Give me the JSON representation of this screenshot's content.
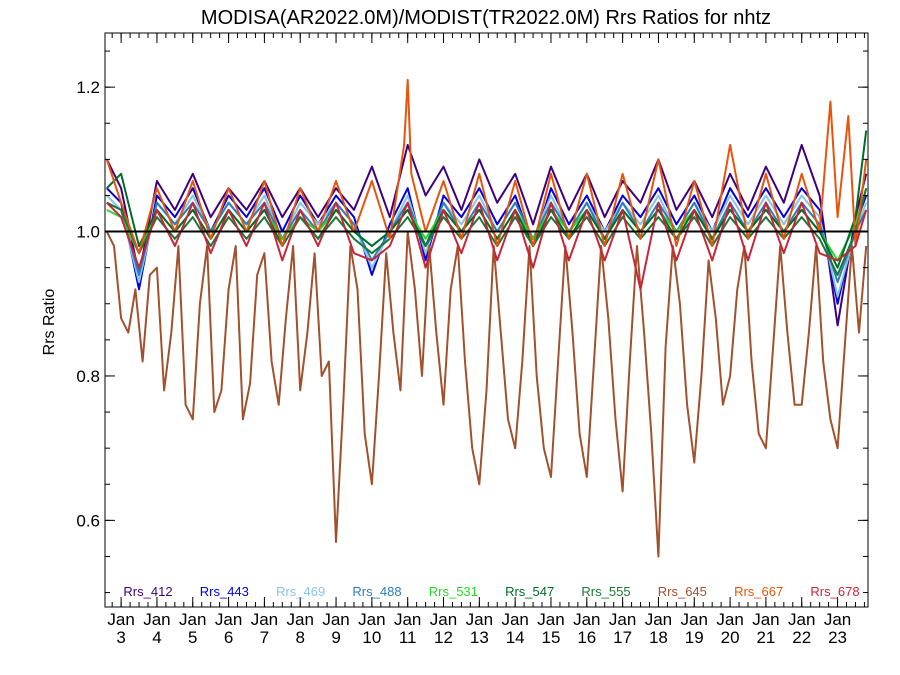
{
  "chart_data": {
    "type": "line",
    "title": "MODISA(AR2022.0M)/MODIST(TR2022.0M)  Rrs Ratios for nhtz",
    "ylabel": "Rrs Ratio",
    "xlabel": "",
    "ylim": [
      0.48,
      1.275
    ],
    "xlim": [
      2.55,
      23.85
    ],
    "grid": false,
    "legend_placement": "bottom",
    "reference_line": 1.0,
    "y_ticks": [
      {
        "value": 0.6,
        "label": "0.6"
      },
      {
        "value": 0.8,
        "label": "0.8"
      },
      {
        "value": 1.0,
        "label": "1.0"
      },
      {
        "value": 1.2,
        "label": "1.2"
      }
    ],
    "x_ticks": [
      {
        "x": 3,
        "line1": "Jan",
        "line2": "3"
      },
      {
        "x": 4,
        "line1": "Jan",
        "line2": "4"
      },
      {
        "x": 5,
        "line1": "Jan",
        "line2": "5"
      },
      {
        "x": 6,
        "line1": "Jan",
        "line2": "6"
      },
      {
        "x": 7,
        "line1": "Jan",
        "line2": "7"
      },
      {
        "x": 8,
        "line1": "Jan",
        "line2": "8"
      },
      {
        "x": 9,
        "line1": "Jan",
        "line2": "9"
      },
      {
        "x": 10,
        "line1": "Jan",
        "line2": "10"
      },
      {
        "x": 11,
        "line1": "Jan",
        "line2": "11"
      },
      {
        "x": 12,
        "line1": "Jan",
        "line2": "12"
      },
      {
        "x": 13,
        "line1": "Jan",
        "line2": "13"
      },
      {
        "x": 14,
        "line1": "Jan",
        "line2": "14"
      },
      {
        "x": 15,
        "line1": "Jan",
        "line2": "15"
      },
      {
        "x": 16,
        "line1": "Jan",
        "line2": "16"
      },
      {
        "x": 17,
        "line1": "Jan",
        "line2": "17"
      },
      {
        "x": 18,
        "line1": "Jan",
        "line2": "18"
      },
      {
        "x": 19,
        "line1": "Jan",
        "line2": "19"
      },
      {
        "x": 20,
        "line1": "Jan",
        "line2": "20"
      },
      {
        "x": 21,
        "line1": "Jan",
        "line2": "21"
      },
      {
        "x": 22,
        "line1": "Jan",
        "line2": "22"
      },
      {
        "x": 23,
        "line1": "Jan",
        "line2": "23"
      }
    ],
    "series": [
      {
        "name": "Rrs_412",
        "color": "#3f007d",
        "x": [
          2.6,
          3.0,
          3.5,
          4.0,
          4.5,
          5.0,
          5.5,
          6.0,
          6.5,
          7.0,
          7.5,
          8.0,
          8.5,
          9.0,
          9.5,
          10.0,
          10.5,
          11.0,
          11.5,
          12.0,
          12.5,
          13.0,
          13.5,
          14.0,
          14.5,
          15.0,
          15.5,
          16.0,
          16.5,
          17.0,
          17.5,
          18.0,
          18.5,
          19.0,
          19.5,
          20.0,
          20.5,
          21.0,
          21.5,
          22.0,
          22.5,
          23.0,
          23.5,
          23.8
        ],
        "values": [
          1.1,
          1.06,
          0.94,
          1.07,
          1.03,
          1.08,
          1.02,
          1.06,
          1.03,
          1.07,
          1.02,
          1.06,
          1.02,
          1.06,
          1.03,
          1.09,
          1.02,
          1.12,
          1.05,
          1.09,
          1.03,
          1.1,
          1.04,
          1.08,
          1.01,
          1.09,
          1.03,
          1.08,
          1.02,
          1.07,
          1.04,
          1.1,
          1.03,
          1.07,
          1.02,
          1.08,
          1.03,
          1.09,
          1.04,
          1.12,
          1.05,
          0.87,
          1.02,
          1.08
        ]
      },
      {
        "name": "Rrs_443",
        "color": "#0000e0",
        "x": [
          2.6,
          3.0,
          3.5,
          4.0,
          4.5,
          5.0,
          5.5,
          6.0,
          6.5,
          7.0,
          7.5,
          8.0,
          8.5,
          9.0,
          9.5,
          10.0,
          10.5,
          11.0,
          11.5,
          12.0,
          12.5,
          13.0,
          13.5,
          14.0,
          14.5,
          15.0,
          15.5,
          16.0,
          16.5,
          17.0,
          17.5,
          18.0,
          18.5,
          19.0,
          19.5,
          20.0,
          20.5,
          21.0,
          21.5,
          22.0,
          22.5,
          23.0,
          23.5,
          23.8
        ],
        "values": [
          1.06,
          1.04,
          0.92,
          1.05,
          1.02,
          1.06,
          1.0,
          1.05,
          1.02,
          1.06,
          1.0,
          1.05,
          1.01,
          1.05,
          1.02,
          0.94,
          1.01,
          1.06,
          0.96,
          1.05,
          1.02,
          1.06,
          1.01,
          1.05,
          0.98,
          1.06,
          1.01,
          1.05,
          1.0,
          1.05,
          1.02,
          1.06,
          1.01,
          1.05,
          1.0,
          1.06,
          1.02,
          1.06,
          1.02,
          1.06,
          1.03,
          0.9,
          1.01,
          1.05
        ]
      },
      {
        "name": "Rrs_469",
        "color": "#87c5e6",
        "x": [
          2.6,
          3.0,
          3.5,
          4.0,
          4.5,
          5.0,
          5.5,
          6.0,
          6.5,
          7.0,
          7.5,
          8.0,
          8.5,
          9.0,
          9.5,
          10.0,
          10.5,
          11.0,
          11.5,
          12.0,
          12.5,
          13.0,
          13.5,
          14.0,
          14.5,
          15.0,
          15.5,
          16.0,
          16.5,
          17.0,
          17.5,
          18.0,
          18.5,
          19.0,
          19.5,
          20.0,
          20.5,
          21.0,
          21.5,
          22.0,
          22.5,
          23.0,
          23.5,
          23.8
        ],
        "values": [
          1.05,
          1.03,
          0.93,
          1.04,
          1.01,
          1.05,
          1.0,
          1.04,
          1.01,
          1.05,
          0.99,
          1.04,
          1.01,
          1.04,
          1.01,
          0.95,
          1.0,
          1.05,
          0.97,
          1.04,
          1.01,
          1.05,
          1.0,
          1.04,
          0.99,
          1.05,
          1.0,
          1.04,
          1.0,
          1.04,
          1.01,
          1.05,
          1.0,
          1.04,
          1.0,
          1.05,
          1.01,
          1.05,
          1.01,
          1.05,
          1.02,
          0.91,
          1.0,
          1.04
        ]
      },
      {
        "name": "Rrs_488",
        "color": "#2c7fb8",
        "x": [
          2.6,
          3.0,
          3.5,
          4.0,
          4.5,
          5.0,
          5.5,
          6.0,
          6.5,
          7.0,
          7.5,
          8.0,
          8.5,
          9.0,
          9.5,
          10.0,
          10.5,
          11.0,
          11.5,
          12.0,
          12.5,
          13.0,
          13.5,
          14.0,
          14.5,
          15.0,
          15.5,
          16.0,
          16.5,
          17.0,
          17.5,
          18.0,
          18.5,
          19.0,
          19.5,
          20.0,
          20.5,
          21.0,
          21.5,
          22.0,
          22.5,
          23.0,
          23.5,
          23.8
        ],
        "values": [
          1.04,
          1.03,
          0.94,
          1.04,
          1.01,
          1.04,
          1.0,
          1.04,
          1.01,
          1.04,
          0.99,
          1.03,
          1.0,
          1.04,
          1.01,
          0.96,
          1.0,
          1.04,
          0.98,
          1.04,
          1.0,
          1.04,
          1.0,
          1.04,
          0.99,
          1.04,
          1.0,
          1.04,
          0.99,
          1.04,
          1.0,
          1.04,
          1.0,
          1.04,
          0.99,
          1.04,
          1.0,
          1.04,
          1.0,
          1.04,
          1.01,
          0.93,
          1.0,
          1.03
        ]
      },
      {
        "name": "Rrs_531",
        "color": "#2bd62b",
        "x": [
          2.6,
          3.0,
          3.5,
          4.0,
          4.5,
          5.0,
          5.5,
          6.0,
          6.5,
          7.0,
          7.5,
          8.0,
          8.5,
          9.0,
          9.5,
          10.0,
          10.5,
          11.0,
          11.5,
          12.0,
          12.5,
          13.0,
          13.5,
          14.0,
          14.5,
          15.0,
          15.5,
          16.0,
          16.5,
          17.0,
          17.5,
          18.0,
          18.5,
          19.0,
          19.5,
          20.0,
          20.5,
          21.0,
          21.5,
          22.0,
          22.5,
          23.0,
          23.5,
          23.8
        ],
        "values": [
          1.03,
          1.02,
          0.97,
          1.03,
          1.0,
          1.03,
          0.99,
          1.03,
          1.0,
          1.03,
          0.99,
          1.02,
          1.0,
          1.03,
          1.0,
          0.98,
          1.0,
          1.03,
          0.99,
          1.03,
          1.0,
          1.03,
          0.99,
          1.03,
          0.99,
          1.03,
          1.0,
          1.03,
          0.99,
          1.03,
          1.0,
          1.03,
          1.0,
          1.03,
          0.99,
          1.03,
          1.0,
          1.03,
          1.0,
          1.03,
          1.0,
          0.96,
          1.01,
          1.06
        ]
      },
      {
        "name": "Rrs_547",
        "color": "#006d2c",
        "x": [
          2.6,
          3.0,
          3.5,
          4.0,
          4.5,
          5.0,
          5.5,
          6.0,
          6.5,
          7.0,
          7.5,
          8.0,
          8.5,
          9.0,
          9.5,
          10.0,
          10.5,
          11.0,
          11.5,
          12.0,
          12.5,
          13.0,
          13.5,
          14.0,
          14.5,
          15.0,
          15.5,
          16.0,
          16.5,
          17.0,
          17.5,
          18.0,
          18.5,
          19.0,
          19.5,
          20.0,
          20.5,
          21.0,
          21.5,
          22.0,
          22.5,
          23.0,
          23.5,
          23.8
        ],
        "values": [
          1.06,
          1.08,
          0.98,
          1.03,
          1.0,
          1.03,
          0.99,
          1.03,
          1.0,
          1.03,
          0.98,
          1.02,
          0.99,
          1.03,
          1.0,
          0.98,
          1.0,
          1.03,
          0.98,
          1.03,
          1.0,
          1.03,
          0.99,
          1.03,
          0.98,
          1.03,
          0.99,
          1.03,
          0.99,
          1.03,
          1.0,
          1.03,
          0.99,
          1.03,
          0.99,
          1.03,
          1.0,
          1.03,
          1.0,
          1.03,
          1.0,
          0.95,
          1.02,
          1.14
        ]
      },
      {
        "name": "Rrs_555",
        "color": "#1b7837",
        "x": [
          2.6,
          3.0,
          3.5,
          4.0,
          4.5,
          5.0,
          5.5,
          6.0,
          6.5,
          7.0,
          7.5,
          8.0,
          8.5,
          9.0,
          9.5,
          10.0,
          10.5,
          11.0,
          11.5,
          12.0,
          12.5,
          13.0,
          13.5,
          14.0,
          14.5,
          15.0,
          15.5,
          16.0,
          16.5,
          17.0,
          17.5,
          18.0,
          18.5,
          19.0,
          19.5,
          20.0,
          20.5,
          21.0,
          21.5,
          22.0,
          22.5,
          23.0,
          23.5,
          23.8
        ],
        "values": [
          1.04,
          1.03,
          0.97,
          1.02,
          0.99,
          1.02,
          0.98,
          1.02,
          0.99,
          1.02,
          0.98,
          1.02,
          0.99,
          1.02,
          0.99,
          0.97,
          0.99,
          1.02,
          0.98,
          1.02,
          0.99,
          1.02,
          0.98,
          1.02,
          0.98,
          1.02,
          0.99,
          1.02,
          0.98,
          1.02,
          0.99,
          1.02,
          0.99,
          1.02,
          0.98,
          1.02,
          0.99,
          1.02,
          0.99,
          1.02,
          0.99,
          0.94,
          1.0,
          1.06
        ]
      },
      {
        "name": "Rrs_645",
        "color": "#a0522d",
        "x": [
          2.6,
          2.8,
          3.0,
          3.2,
          3.4,
          3.6,
          3.8,
          4.0,
          4.2,
          4.4,
          4.6,
          4.8,
          5.0,
          5.2,
          5.4,
          5.6,
          5.8,
          6.0,
          6.2,
          6.4,
          6.6,
          6.8,
          7.0,
          7.2,
          7.4,
          7.6,
          7.8,
          8.0,
          8.2,
          8.4,
          8.6,
          8.8,
          9.0,
          9.2,
          9.4,
          9.6,
          9.8,
          10.0,
          10.2,
          10.4,
          10.6,
          10.8,
          11.0,
          11.2,
          11.4,
          11.6,
          11.8,
          12.0,
          12.2,
          12.4,
          12.6,
          12.8,
          13.0,
          13.2,
          13.4,
          13.6,
          13.8,
          14.0,
          14.2,
          14.4,
          14.6,
          14.8,
          15.0,
          15.2,
          15.4,
          15.6,
          15.8,
          16.0,
          16.2,
          16.4,
          16.6,
          16.8,
          17.0,
          17.2,
          17.4,
          17.6,
          17.8,
          18.0,
          18.2,
          18.4,
          18.6,
          18.8,
          19.0,
          19.2,
          19.4,
          19.6,
          19.8,
          20.0,
          20.2,
          20.4,
          20.6,
          20.8,
          21.0,
          21.2,
          21.4,
          21.6,
          21.8,
          22.0,
          22.2,
          22.4,
          22.6,
          22.8,
          23.0,
          23.2,
          23.4,
          23.6,
          23.8
        ],
        "values": [
          1.0,
          0.98,
          0.88,
          0.86,
          0.92,
          0.82,
          0.94,
          0.95,
          0.78,
          0.86,
          0.98,
          0.76,
          0.74,
          0.9,
          0.98,
          0.75,
          0.78,
          0.92,
          0.98,
          0.74,
          0.79,
          0.94,
          0.97,
          0.82,
          0.76,
          0.88,
          0.98,
          0.78,
          0.86,
          0.97,
          0.8,
          0.82,
          0.57,
          0.76,
          0.98,
          0.92,
          0.72,
          0.65,
          0.8,
          0.97,
          0.86,
          0.78,
          1.0,
          0.92,
          0.8,
          0.98,
          0.86,
          0.76,
          0.92,
          0.98,
          0.82,
          0.7,
          0.65,
          0.78,
          0.98,
          0.86,
          0.74,
          0.7,
          0.82,
          0.98,
          0.8,
          0.7,
          0.66,
          0.82,
          0.98,
          0.86,
          0.72,
          0.66,
          0.82,
          0.98,
          0.88,
          0.74,
          0.64,
          0.82,
          0.98,
          0.86,
          0.72,
          0.55,
          0.84,
          0.98,
          0.9,
          0.76,
          0.68,
          0.8,
          0.96,
          0.88,
          0.76,
          0.8,
          0.92,
          0.98,
          0.82,
          0.72,
          0.7,
          0.84,
          0.98,
          0.86,
          0.76,
          0.76,
          0.86,
          0.98,
          0.82,
          0.74,
          0.7,
          0.84,
          0.98,
          0.86,
          0.98
        ]
      },
      {
        "name": "Rrs_667",
        "color": "#e6550d",
        "x": [
          2.6,
          3.0,
          3.5,
          4.0,
          4.5,
          5.0,
          5.5,
          6.0,
          6.5,
          7.0,
          7.5,
          8.0,
          8.5,
          9.0,
          9.5,
          10.0,
          10.5,
          10.9,
          11.0,
          11.1,
          11.5,
          12.0,
          12.5,
          13.0,
          13.5,
          14.0,
          14.5,
          15.0,
          15.5,
          16.0,
          16.5,
          17.0,
          17.5,
          18.0,
          18.5,
          19.0,
          19.5,
          20.0,
          20.5,
          21.0,
          21.5,
          22.0,
          22.5,
          22.8,
          23.0,
          23.3,
          23.5,
          23.8
        ],
        "values": [
          1.1,
          1.04,
          0.97,
          1.06,
          1.0,
          1.07,
          0.99,
          1.06,
          1.0,
          1.07,
          0.98,
          1.06,
          1.0,
          1.07,
          1.0,
          1.07,
          0.99,
          1.12,
          1.21,
          1.08,
          1.0,
          1.07,
          0.99,
          1.08,
          0.98,
          1.07,
          0.98,
          1.08,
          0.99,
          1.08,
          0.98,
          1.08,
          0.99,
          1.1,
          0.98,
          1.07,
          0.98,
          1.12,
          0.99,
          1.08,
          0.99,
          1.08,
          1.0,
          1.18,
          1.02,
          1.16,
          0.98,
          1.1
        ]
      },
      {
        "name": "Rrs_678",
        "color": "#c9253a",
        "x": [
          2.6,
          3.0,
          3.5,
          4.0,
          4.5,
          5.0,
          5.5,
          6.0,
          6.5,
          7.0,
          7.5,
          8.0,
          8.5,
          9.0,
          9.5,
          10.0,
          10.5,
          11.0,
          11.5,
          12.0,
          12.5,
          13.0,
          13.5,
          14.0,
          14.5,
          15.0,
          15.5,
          16.0,
          16.5,
          17.0,
          17.5,
          18.0,
          18.5,
          19.0,
          19.5,
          20.0,
          20.5,
          21.0,
          21.5,
          22.0,
          22.5,
          23.0,
          23.5,
          23.8
        ],
        "values": [
          1.04,
          1.02,
          0.95,
          1.03,
          0.98,
          1.04,
          0.97,
          1.03,
          0.98,
          1.04,
          0.96,
          1.03,
          0.98,
          1.04,
          0.97,
          0.96,
          0.98,
          1.04,
          0.95,
          1.03,
          0.97,
          1.04,
          0.96,
          1.03,
          0.95,
          1.04,
          0.96,
          1.03,
          0.96,
          1.03,
          0.92,
          1.04,
          0.96,
          1.03,
          0.96,
          1.04,
          0.96,
          1.04,
          0.97,
          1.04,
          0.97,
          0.96,
          0.98,
          1.03
        ]
      }
    ]
  }
}
